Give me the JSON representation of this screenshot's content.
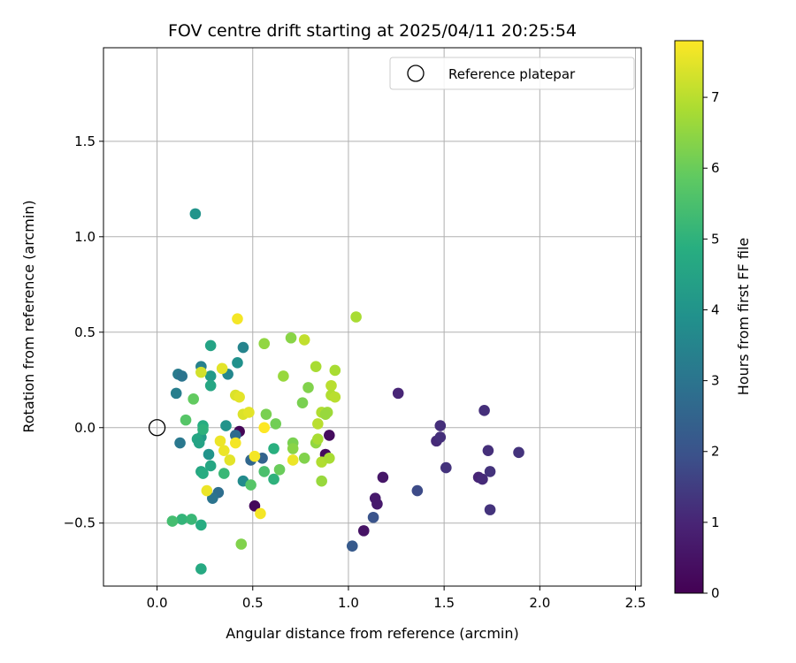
{
  "chart_data": {
    "type": "scatter",
    "title": "FOV centre drift starting at 2025/04/11 20:25:54",
    "xlabel": "Angular distance from reference (arcmin)",
    "ylabel": "Rotation from reference (arcmin)",
    "xlim": [
      -0.28,
      2.53
    ],
    "ylim": [
      -0.83,
      1.99
    ],
    "xticks": [
      0.0,
      0.5,
      1.0,
      1.5,
      2.0,
      2.5
    ],
    "yticks": [
      -0.5,
      0.0,
      0.5,
      1.0,
      1.5
    ],
    "xtick_labels": [
      "0.0",
      "0.5",
      "1.0",
      "1.5",
      "2.0",
      "2.5"
    ],
    "ytick_labels": [
      "−0.5",
      "0.0",
      "0.5",
      "1.0",
      "1.5"
    ],
    "grid": true,
    "legend": {
      "placement": "top-right",
      "entries": [
        "Reference platepar"
      ]
    },
    "reference_point": {
      "label": "Reference platepar",
      "x": 0.0,
      "y": 0.0,
      "marker": "open-circle"
    },
    "colorbar": {
      "label": "Hours from first FF file",
      "colormap": "viridis",
      "range": [
        0,
        7.8
      ],
      "ticks": [
        0,
        1,
        2,
        3,
        4,
        5,
        6,
        7
      ],
      "tick_labels": [
        "0",
        "1",
        "2",
        "3",
        "4",
        "5",
        "6",
        "7"
      ]
    },
    "series": [
      {
        "points": [
          {
            "x": 0.43,
            "y": -0.02,
            "c": 0.1
          },
          {
            "x": 0.51,
            "y": -0.41,
            "c": 0.2
          },
          {
            "x": 0.88,
            "y": -0.14,
            "c": 0.3
          },
          {
            "x": 0.9,
            "y": -0.04,
            "c": 0.3
          },
          {
            "x": 1.08,
            "y": -0.54,
            "c": 0.5
          },
          {
            "x": 1.18,
            "y": -0.26,
            "c": 0.6
          },
          {
            "x": 1.14,
            "y": -0.37,
            "c": 0.7
          },
          {
            "x": 1.15,
            "y": -0.4,
            "c": 0.7
          },
          {
            "x": 1.26,
            "y": 0.18,
            "c": 1.0
          },
          {
            "x": 1.46,
            "y": -0.07,
            "c": 1.1
          },
          {
            "x": 1.48,
            "y": 0.01,
            "c": 1.2
          },
          {
            "x": 1.48,
            "y": -0.05,
            "c": 1.2
          },
          {
            "x": 1.51,
            "y": -0.21,
            "c": 1.3
          },
          {
            "x": 1.68,
            "y": -0.26,
            "c": 1.0
          },
          {
            "x": 1.7,
            "y": -0.27,
            "c": 1.1
          },
          {
            "x": 1.71,
            "y": 0.09,
            "c": 1.2
          },
          {
            "x": 1.73,
            "y": -0.12,
            "c": 1.2
          },
          {
            "x": 1.74,
            "y": -0.23,
            "c": 1.3
          },
          {
            "x": 1.74,
            "y": -0.43,
            "c": 1.3
          },
          {
            "x": 1.89,
            "y": -0.13,
            "c": 1.3
          },
          {
            "x": 1.36,
            "y": -0.33,
            "c": 1.8
          },
          {
            "x": 1.13,
            "y": -0.47,
            "c": 2.0
          },
          {
            "x": 1.02,
            "y": -0.62,
            "c": 2.2
          },
          {
            "x": 0.49,
            "y": -0.17,
            "c": 2.6
          },
          {
            "x": 0.55,
            "y": -0.16,
            "c": 2.5
          },
          {
            "x": 0.41,
            "y": -0.04,
            "c": 2.7
          },
          {
            "x": 0.32,
            "y": -0.34,
            "c": 2.8
          },
          {
            "x": 0.29,
            "y": -0.37,
            "c": 3.0
          },
          {
            "x": 0.12,
            "y": -0.08,
            "c": 3.1
          },
          {
            "x": 0.11,
            "y": 0.28,
            "c": 3.2
          },
          {
            "x": 0.13,
            "y": 0.27,
            "c": 3.0
          },
          {
            "x": 0.1,
            "y": 0.18,
            "c": 3.3
          },
          {
            "x": 0.23,
            "y": 0.32,
            "c": 3.4
          },
          {
            "x": 0.37,
            "y": 0.28,
            "c": 3.6
          },
          {
            "x": 0.45,
            "y": 0.42,
            "c": 3.5
          },
          {
            "x": 0.42,
            "y": 0.34,
            "c": 3.9
          },
          {
            "x": 0.45,
            "y": -0.28,
            "c": 3.7
          },
          {
            "x": 0.36,
            "y": 0.01,
            "c": 4.0
          },
          {
            "x": 0.27,
            "y": -0.14,
            "c": 4.0
          },
          {
            "x": 0.2,
            "y": 1.12,
            "c": 4.0
          },
          {
            "x": 0.28,
            "y": 0.27,
            "c": 4.2
          },
          {
            "x": 0.28,
            "y": 0.22,
            "c": 4.6
          },
          {
            "x": 0.28,
            "y": 0.43,
            "c": 4.5
          },
          {
            "x": 0.23,
            "y": -0.05,
            "c": 4.2
          },
          {
            "x": 0.21,
            "y": -0.06,
            "c": 4.6
          },
          {
            "x": 0.22,
            "y": -0.08,
            "c": 4.5
          },
          {
            "x": 0.23,
            "y": -0.23,
            "c": 4.6
          },
          {
            "x": 0.24,
            "y": -0.24,
            "c": 4.8
          },
          {
            "x": 0.28,
            "y": -0.2,
            "c": 4.6
          },
          {
            "x": 0.24,
            "y": 0.01,
            "c": 4.8
          },
          {
            "x": 0.24,
            "y": -0.01,
            "c": 5.0
          },
          {
            "x": 0.23,
            "y": -0.51,
            "c": 4.8
          },
          {
            "x": 0.23,
            "y": -0.74,
            "c": 4.7
          },
          {
            "x": 0.13,
            "y": -0.48,
            "c": 5.1
          },
          {
            "x": 0.18,
            "y": -0.48,
            "c": 5.2
          },
          {
            "x": 0.08,
            "y": -0.49,
            "c": 5.4
          },
          {
            "x": 0.35,
            "y": -0.24,
            "c": 5.2
          },
          {
            "x": 0.61,
            "y": -0.27,
            "c": 5.0
          },
          {
            "x": 0.61,
            "y": -0.11,
            "c": 4.9
          },
          {
            "x": 0.56,
            "y": -0.23,
            "c": 5.5
          },
          {
            "x": 0.49,
            "y": -0.3,
            "c": 5.7
          },
          {
            "x": 0.15,
            "y": 0.04,
            "c": 5.7
          },
          {
            "x": 0.19,
            "y": 0.15,
            "c": 5.9
          },
          {
            "x": 0.64,
            "y": -0.22,
            "c": 6.0
          },
          {
            "x": 0.57,
            "y": 0.07,
            "c": 6.2
          },
          {
            "x": 0.62,
            "y": 0.02,
            "c": 6.1
          },
          {
            "x": 0.71,
            "y": -0.08,
            "c": 6.2
          },
          {
            "x": 0.71,
            "y": -0.11,
            "c": 6.4
          },
          {
            "x": 0.77,
            "y": -0.16,
            "c": 6.3
          },
          {
            "x": 0.76,
            "y": 0.13,
            "c": 6.2
          },
          {
            "x": 0.79,
            "y": 0.21,
            "c": 6.3
          },
          {
            "x": 0.66,
            "y": 0.27,
            "c": 6.6
          },
          {
            "x": 0.7,
            "y": 0.47,
            "c": 6.4
          },
          {
            "x": 0.56,
            "y": 0.44,
            "c": 6.5
          },
          {
            "x": 0.44,
            "y": -0.61,
            "c": 6.3
          },
          {
            "x": 0.86,
            "y": -0.28,
            "c": 6.6
          },
          {
            "x": 0.83,
            "y": -0.08,
            "c": 6.5
          },
          {
            "x": 0.84,
            "y": -0.06,
            "c": 6.8
          },
          {
            "x": 0.83,
            "y": 0.32,
            "c": 6.8
          },
          {
            "x": 0.86,
            "y": 0.08,
            "c": 6.9
          },
          {
            "x": 0.89,
            "y": 0.08,
            "c": 6.7
          },
          {
            "x": 0.88,
            "y": 0.07,
            "c": 6.6
          },
          {
            "x": 0.86,
            "y": -0.18,
            "c": 6.9
          },
          {
            "x": 0.9,
            "y": -0.16,
            "c": 6.8
          },
          {
            "x": 0.84,
            "y": 0.02,
            "c": 7.0
          },
          {
            "x": 0.91,
            "y": 0.22,
            "c": 7.0
          },
          {
            "x": 0.91,
            "y": 0.17,
            "c": 6.9
          },
          {
            "x": 0.93,
            "y": 0.16,
            "c": 7.0
          },
          {
            "x": 0.93,
            "y": 0.3,
            "c": 6.8
          },
          {
            "x": 0.77,
            "y": 0.46,
            "c": 7.1
          },
          {
            "x": 1.04,
            "y": 0.58,
            "c": 6.8
          },
          {
            "x": 0.23,
            "y": 0.29,
            "c": 7.3
          },
          {
            "x": 0.34,
            "y": 0.31,
            "c": 7.5
          },
          {
            "x": 0.42,
            "y": 0.57,
            "c": 7.7
          },
          {
            "x": 0.41,
            "y": 0.17,
            "c": 7.4
          },
          {
            "x": 0.43,
            "y": 0.16,
            "c": 7.5
          },
          {
            "x": 0.45,
            "y": 0.07,
            "c": 7.4
          },
          {
            "x": 0.48,
            "y": 0.08,
            "c": 7.5
          },
          {
            "x": 0.33,
            "y": -0.07,
            "c": 7.6
          },
          {
            "x": 0.35,
            "y": -0.12,
            "c": 7.6
          },
          {
            "x": 0.38,
            "y": -0.17,
            "c": 7.5
          },
          {
            "x": 0.41,
            "y": -0.08,
            "c": 7.7
          },
          {
            "x": 0.26,
            "y": -0.33,
            "c": 7.6
          },
          {
            "x": 0.51,
            "y": -0.15,
            "c": 7.7
          },
          {
            "x": 0.56,
            "y": 0.0,
            "c": 7.8
          },
          {
            "x": 0.54,
            "y": -0.45,
            "c": 7.7
          },
          {
            "x": 0.71,
            "y": -0.17,
            "c": 7.6
          }
        ]
      }
    ]
  }
}
